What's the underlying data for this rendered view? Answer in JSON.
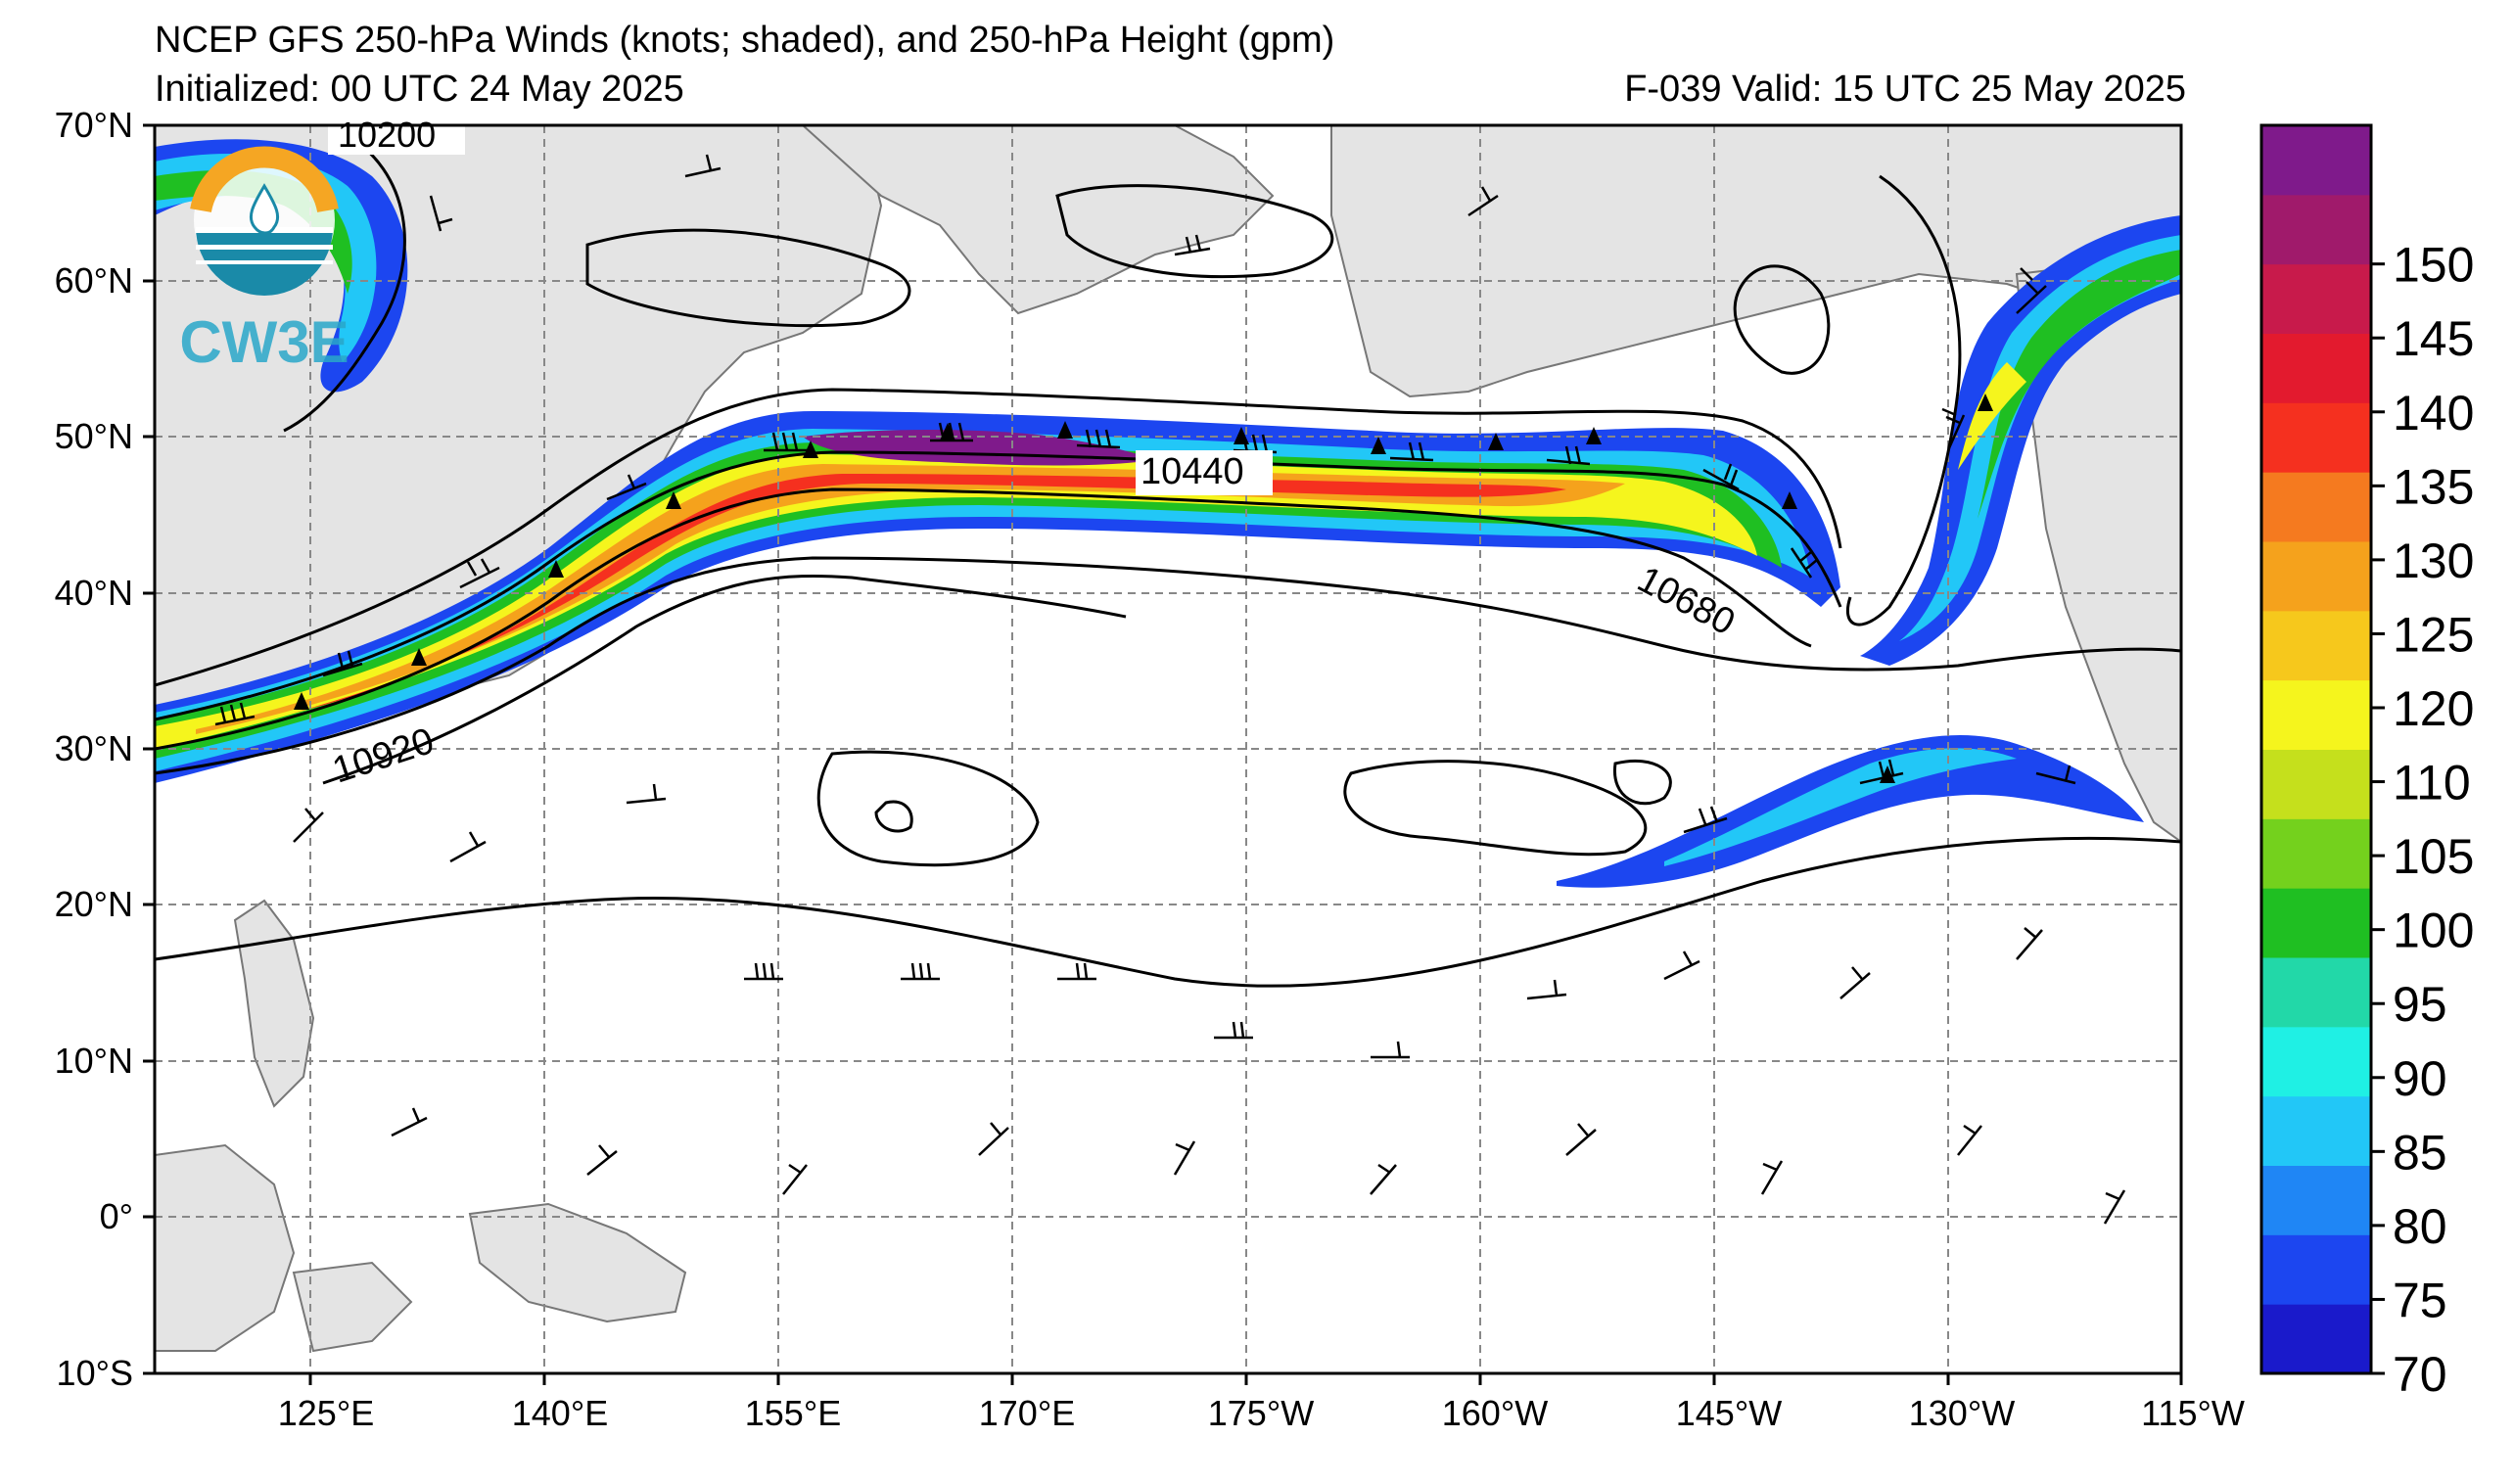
{
  "header": {
    "title": "NCEP GFS 250-hPa Winds (knots; shaded), and 250-hPa Height (gpm)",
    "initialized": "Initialized: 00 UTC 24 May 2025",
    "valid": "F-039  Valid: 15 UTC 25 May 2025"
  },
  "logo": {
    "name": "cw3e-logo",
    "text": "CW3E",
    "colors": [
      "#f5a623",
      "#1a8aa8"
    ]
  },
  "axes": {
    "lat_labels": [
      "70°N",
      "60°N",
      "50°N",
      "40°N",
      "30°N",
      "20°N",
      "10°N",
      "0°",
      "10°S"
    ],
    "lon_labels": [
      "125°E",
      "140°E",
      "155°E",
      "170°E",
      "175°W",
      "160°W",
      "145°W",
      "130°W",
      "115°W"
    ]
  },
  "contour_labels": [
    {
      "id": "c10200",
      "text": "10200"
    },
    {
      "id": "c10440",
      "text": "10440"
    },
    {
      "id": "c10680",
      "text": "10680"
    },
    {
      "id": "c10920",
      "text": "10920"
    }
  ],
  "colorbar": {
    "ticks": [
      "150",
      "145",
      "140",
      "135",
      "130",
      "125",
      "120",
      "110",
      "105",
      "100",
      "95",
      "90",
      "85",
      "80",
      "75",
      "70"
    ],
    "colors": [
      "#1a1acb",
      "#1c46f0",
      "#1f86f5",
      "#22c7f7",
      "#1ff0e4",
      "#22d8a8",
      "#1fbf22",
      "#74d11d",
      "#c5e01c",
      "#f5f51d",
      "#f6c81c",
      "#f5a21c",
      "#f57a1f",
      "#f5301f",
      "#e31a2e",
      "#c81a4b",
      "#a01a6b",
      "#7f1a8b"
    ]
  }
}
